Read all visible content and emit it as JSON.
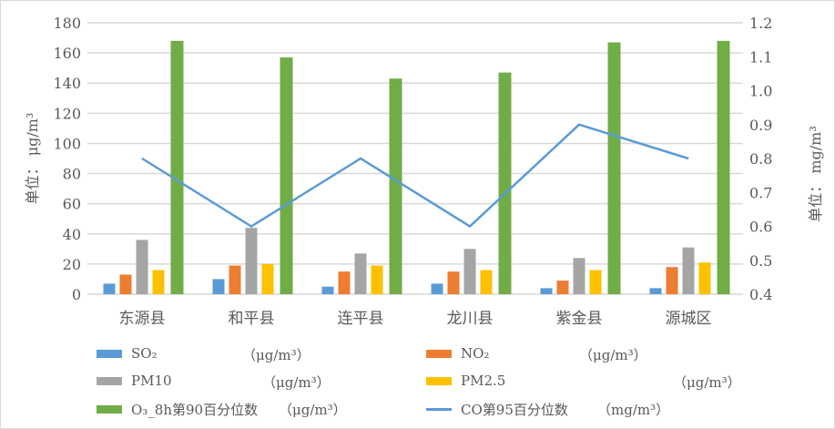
{
  "chart_data": {
    "type": "bar",
    "categories": [
      "东源县",
      "和平县",
      "连平县",
      "龙川县",
      "紫金县",
      "源城区"
    ],
    "y_left": {
      "label": "单位： μg/m³",
      "range": [
        0,
        180
      ],
      "ticks": [
        0,
        20,
        40,
        60,
        80,
        100,
        120,
        140,
        160,
        180
      ]
    },
    "y_right": {
      "label": "单位： mg/m³",
      "range": [
        0.4,
        1.2
      ],
      "ticks": [
        "0.4",
        "0.5",
        "0.6",
        "0.7",
        "0.8",
        "0.9",
        "1.0",
        "1.1",
        "1.2"
      ]
    },
    "grid": true,
    "legend_placement": "bottom",
    "series": [
      {
        "name": "SO₂",
        "unit": "（μg/m³）",
        "type": "bar",
        "axis": "left",
        "color": "#5b9bd5",
        "values": [
          7,
          10,
          5,
          7,
          4,
          4
        ]
      },
      {
        "name": "NO₂",
        "unit": "（μg/m³）",
        "type": "bar",
        "axis": "left",
        "color": "#ed7d31",
        "values": [
          13,
          19,
          15,
          15,
          9,
          18
        ]
      },
      {
        "name": "PM10",
        "unit": "（μg/m³）",
        "type": "bar",
        "axis": "left",
        "color": "#a5a5a5",
        "values": [
          36,
          44,
          27,
          30,
          24,
          31
        ]
      },
      {
        "name": "PM2.5",
        "unit": "（μg/m³）",
        "type": "bar",
        "axis": "left",
        "color": "#ffc000",
        "values": [
          16,
          20,
          19,
          16,
          16,
          21
        ]
      },
      {
        "name": "O₃_8h第90百分位数",
        "unit": "（μg/m³）",
        "type": "bar",
        "axis": "left",
        "color": "#70ad47",
        "values": [
          168,
          157,
          143,
          147,
          167,
          168
        ]
      },
      {
        "name": "CO第95百分位数",
        "unit": "（mg/m³）",
        "type": "line",
        "axis": "right",
        "color": "#5b9bd5",
        "values": [
          0.8,
          0.6,
          0.8,
          0.6,
          0.9,
          0.8
        ]
      }
    ]
  }
}
